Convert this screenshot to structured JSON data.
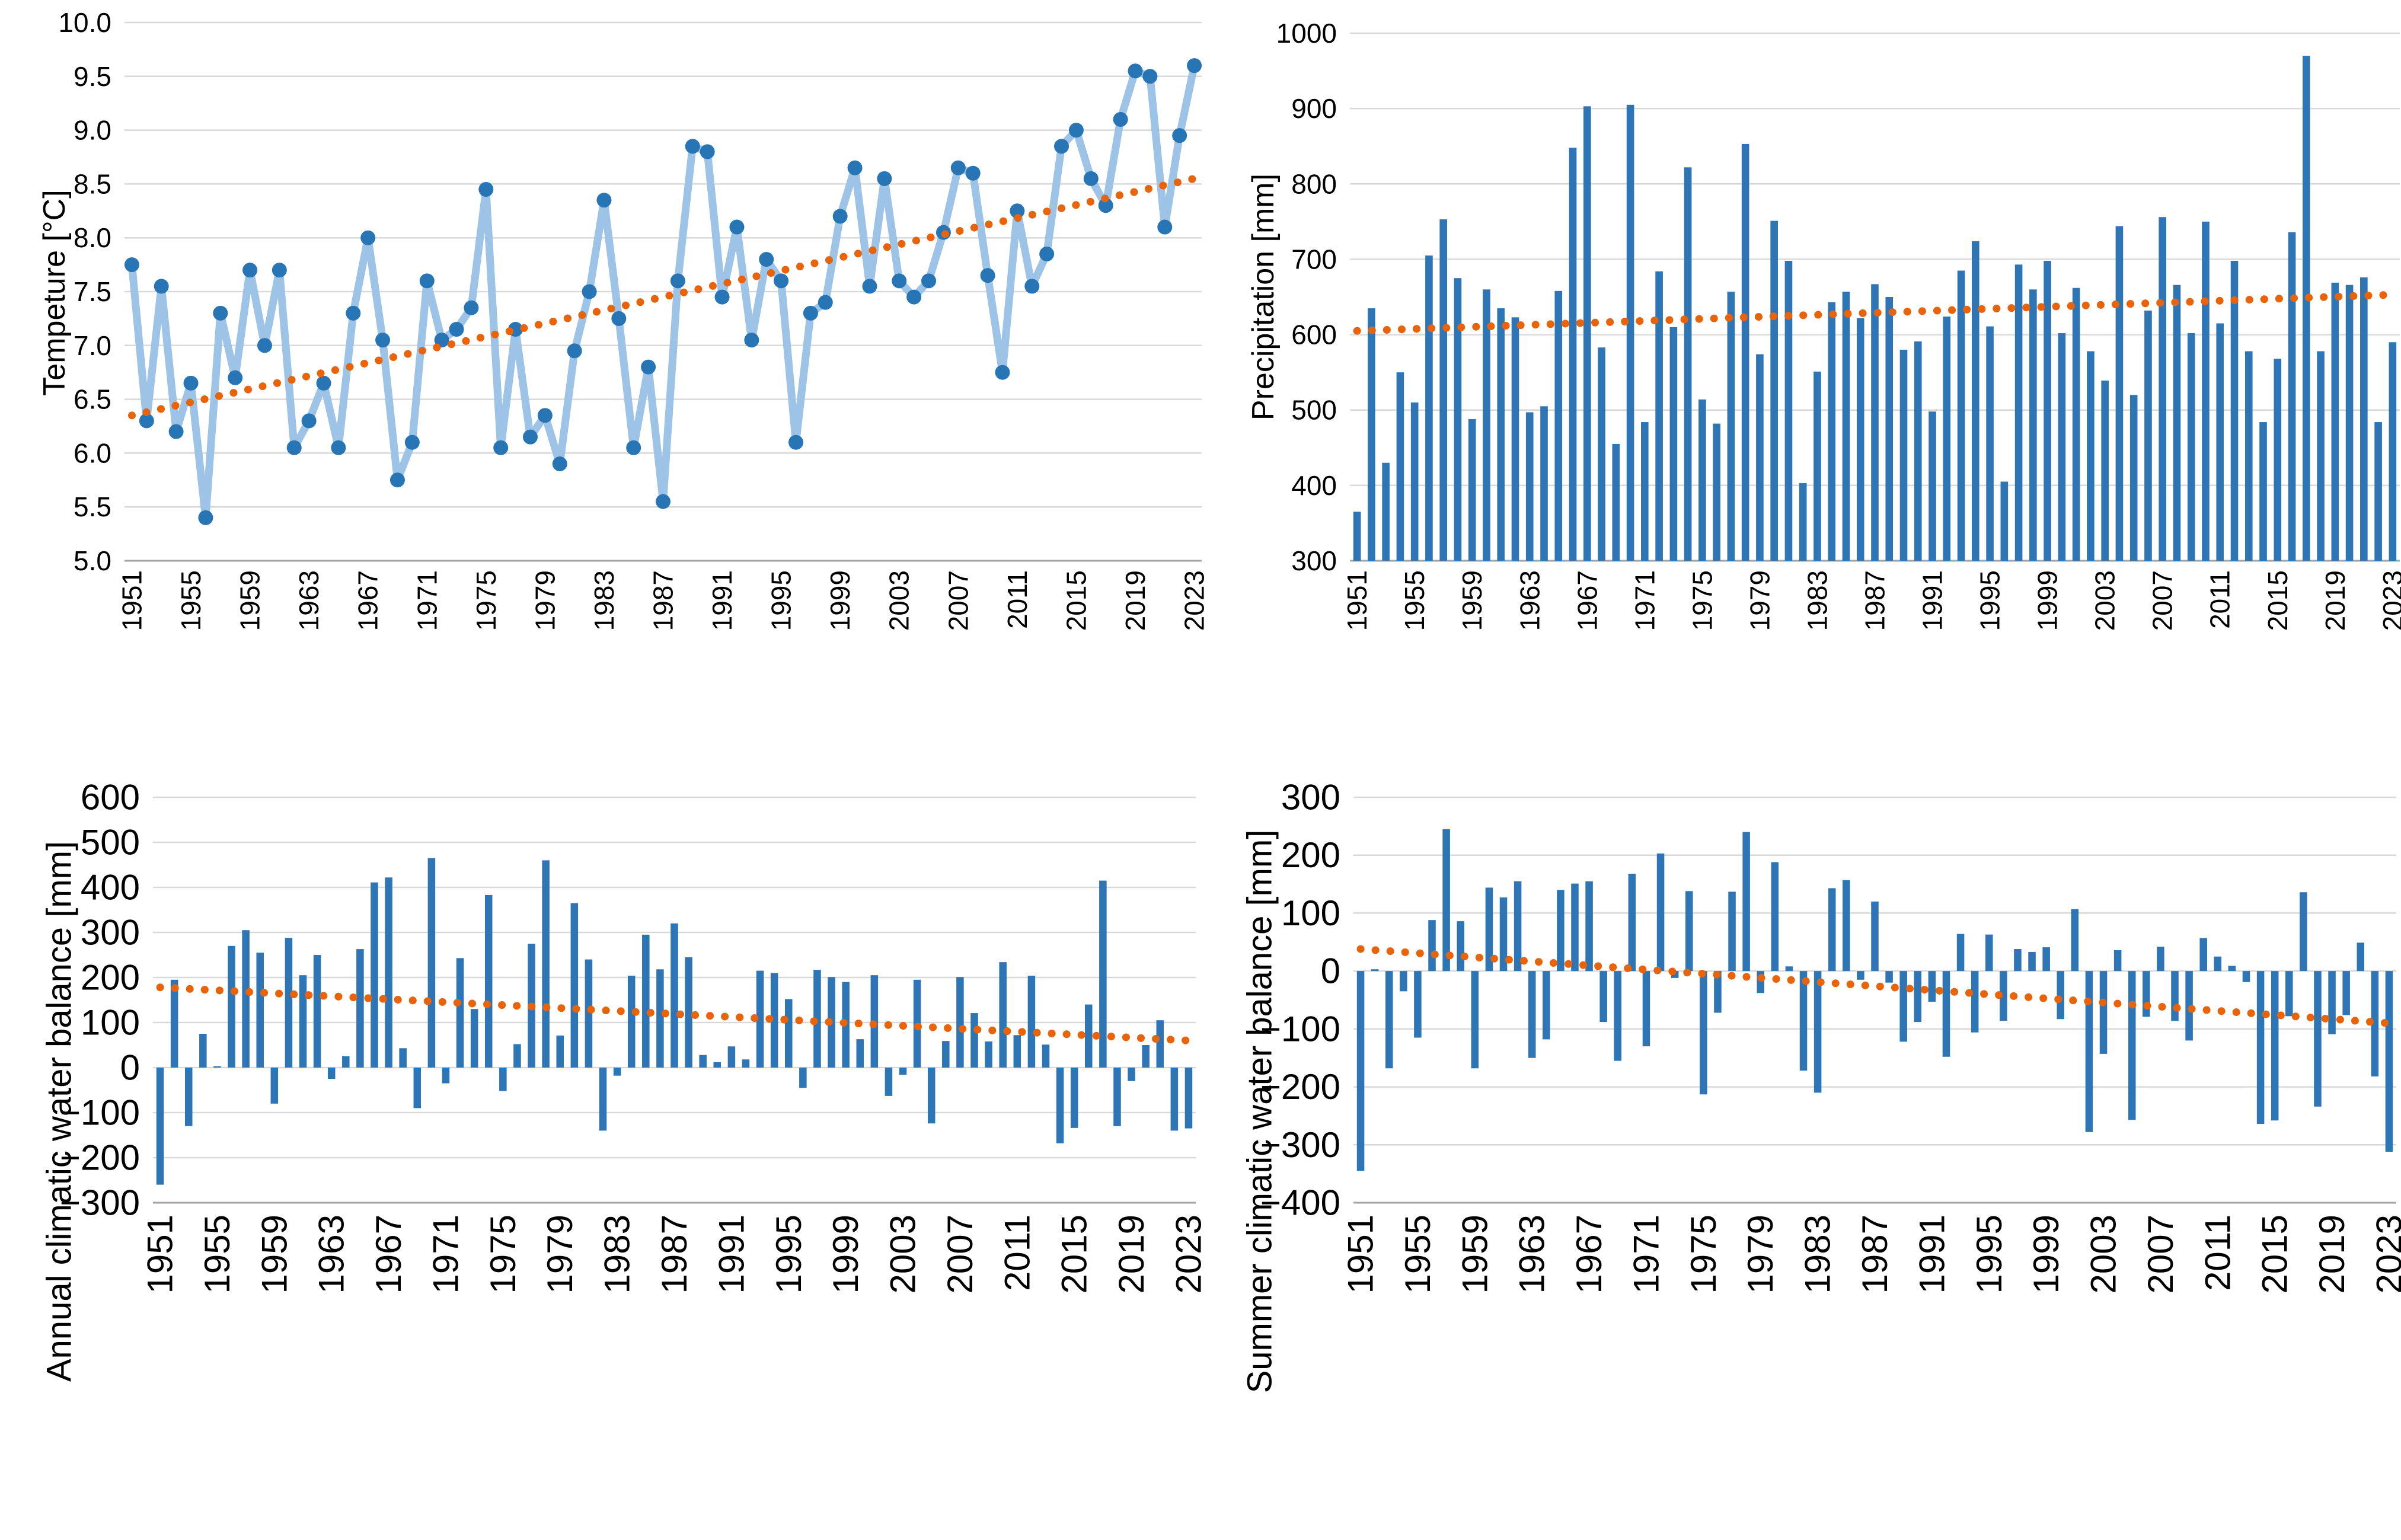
{
  "figure": {
    "description": "Four climate panels 1951-2023: annual temperature line chart, annual precipitation bars, annual climatic water balance bars, summer climatic water balance bars, each with an orange dotted linear trend line",
    "background": "#ffffff"
  },
  "style": {
    "bar_color": "#2E75B6",
    "line_color": "#9DC3E6",
    "marker_color": "#2775B5",
    "trend_color": "#E8630A",
    "gridline_color": "#D9D9D9",
    "axis_color": "#A6A6A6",
    "text_color": "#000000"
  },
  "chart_data": [
    {
      "type": "line",
      "ylabel": "Tempeture [°C]",
      "xlabel": "",
      "ylim": [
        5.0,
        10.0
      ],
      "ytick_step": 0.5,
      "ytick_decimals": 1,
      "grid": true,
      "legend": "none",
      "x_first_year": 1951,
      "x_last_year": 2023,
      "xtick_labels": [
        "1951",
        "1955",
        "1959",
        "1963",
        "1967",
        "1971",
        "1975",
        "1979",
        "1983",
        "1987",
        "1991",
        "1995",
        "1999",
        "2003",
        "2007",
        "2011",
        "2015",
        "2019",
        "2023"
      ],
      "values": [
        7.75,
        6.3,
        7.55,
        6.2,
        6.65,
        5.4,
        7.3,
        6.7,
        7.7,
        7.0,
        7.7,
        6.05,
        6.3,
        6.65,
        6.05,
        7.3,
        8.0,
        7.05,
        5.75,
        6.1,
        7.6,
        7.05,
        7.15,
        7.35,
        8.45,
        6.05,
        7.15,
        6.15,
        6.35,
        5.9,
        6.95,
        7.5,
        8.35,
        7.25,
        6.05,
        6.8,
        5.55,
        7.6,
        8.85,
        8.8,
        7.45,
        8.1,
        7.05,
        7.8,
        7.6,
        6.1,
        7.3,
        7.4,
        8.2,
        8.65,
        7.55,
        8.55,
        7.6,
        7.45,
        7.6,
        8.05,
        8.65,
        8.6,
        7.65,
        6.75,
        8.25,
        7.55,
        7.85,
        8.85,
        9.0,
        8.55,
        8.3,
        9.1,
        9.55,
        9.5,
        8.1,
        8.95,
        9.6
      ],
      "trend": {
        "start": 6.35,
        "end": 8.55
      }
    },
    {
      "type": "bar",
      "ylabel": "Precipitation [mm]",
      "xlabel": "",
      "ylim": [
        300,
        1000
      ],
      "ytick_step": 100,
      "ytick_decimals": 0,
      "bar_base": 300,
      "grid": true,
      "legend": "none",
      "x_first_year": 1951,
      "x_last_year": 2023,
      "xtick_labels": [
        "1951",
        "1955",
        "1959",
        "1963",
        "1967",
        "1971",
        "1975",
        "1979",
        "1983",
        "1987",
        "1991",
        "1995",
        "1999",
        "2003",
        "2007",
        "2011",
        "2015",
        "2019",
        "2023"
      ],
      "values": [
        365,
        635,
        430,
        550,
        510,
        705,
        753,
        675,
        488,
        660,
        635,
        623,
        497,
        505,
        658,
        848,
        903,
        583,
        455,
        905,
        484,
        684,
        610,
        822,
        514,
        482,
        657,
        853,
        574,
        751,
        698,
        403,
        551,
        643,
        657,
        622,
        667,
        650,
        580,
        591,
        498,
        624,
        685,
        724,
        611,
        405,
        693,
        660,
        698,
        602,
        662,
        578,
        539,
        744,
        520,
        632,
        756,
        666,
        602,
        750,
        615,
        698,
        578,
        484,
        568,
        736,
        970,
        578,
        669,
        666,
        676,
        484,
        590
      ],
      "trend": {
        "start": 605,
        "end": 653
      }
    },
    {
      "type": "bar",
      "ylabel": "Annual climatic water balance [mm]",
      "xlabel": "",
      "ylim": [
        -300,
        600
      ],
      "ytick_step": 100,
      "ytick_decimals": 0,
      "bar_base": 0,
      "grid": true,
      "legend": "none",
      "x_first_year": 1951,
      "x_last_year": 2023,
      "xtick_labels": [
        "1951",
        "1955",
        "1959",
        "1963",
        "1967",
        "1971",
        "1975",
        "1979",
        "1983",
        "1987",
        "1991",
        "1995",
        "1999",
        "2003",
        "2007",
        "2011",
        "2015",
        "2019",
        "2023"
      ],
      "values": [
        -260,
        195,
        -130,
        75,
        3,
        270,
        305,
        255,
        -80,
        288,
        205,
        250,
        -25,
        25,
        263,
        411,
        422,
        43,
        -90,
        465,
        -35,
        243,
        130,
        383,
        -52,
        52,
        275,
        460,
        71,
        365,
        240,
        -140,
        -18,
        204,
        295,
        218,
        320,
        245,
        28,
        12,
        47,
        18,
        215,
        210,
        152,
        -45,
        217,
        201,
        190,
        63,
        205,
        -63,
        -16,
        195,
        -124,
        59,
        201,
        121,
        58,
        234,
        72,
        204,
        51,
        -168,
        -134,
        140,
        415,
        -130,
        -30,
        50,
        105,
        -140,
        -135
      ],
      "trend": {
        "start": 178,
        "end": 60
      }
    },
    {
      "type": "bar",
      "ylabel": "Summer climatic water balance [mm]",
      "xlabel": "",
      "ylim": [
        -400,
        300
      ],
      "ytick_step": 100,
      "ytick_decimals": 0,
      "bar_base": 0,
      "grid": true,
      "legend": "none",
      "x_first_year": 1951,
      "x_last_year": 2023,
      "xtick_labels": [
        "1951",
        "1955",
        "1959",
        "1963",
        "1967",
        "1971",
        "1975",
        "1979",
        "1983",
        "1987",
        "1991",
        "1995",
        "1999",
        "2003",
        "2007",
        "2011",
        "2015",
        "2019",
        "2023"
      ],
      "values": [
        -345,
        3,
        -168,
        -35,
        -115,
        88,
        245,
        86,
        -168,
        144,
        127,
        155,
        -150,
        -118,
        140,
        151,
        155,
        -88,
        -155,
        168,
        -130,
        203,
        -12,
        138,
        -213,
        -72,
        137,
        240,
        -38,
        188,
        8,
        -172,
        -210,
        143,
        157,
        -15,
        120,
        -20,
        -122,
        -88,
        -53,
        -148,
        64,
        -106,
        63,
        -86,
        38,
        33,
        41,
        -83,
        107,
        -278,
        -143,
        36,
        -257,
        -79,
        42,
        -86,
        -120,
        57,
        25,
        9,
        -19,
        -264,
        -258,
        -78,
        136,
        -234,
        -109,
        -76,
        49,
        -182,
        -312
      ],
      "trend": {
        "start": 38,
        "end": -90
      }
    }
  ]
}
